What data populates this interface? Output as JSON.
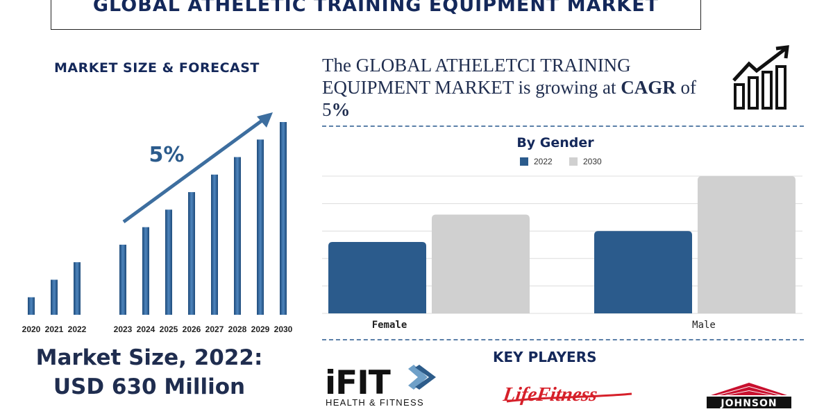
{
  "title": "GLOBAL ATHELETIC TRAINING EQUIPMENT MARKET",
  "forecast": {
    "heading": "MARKET SIZE & FORECAST",
    "cagr_label": "5%"
  },
  "market_size": {
    "line1": "Market Size, 2022:",
    "line2": "USD 630 Million"
  },
  "cagr_statement": {
    "text_before": "The GLOBAL ATHELETCI TRAINING EQUIPMENT MARKET is growing at ",
    "cagr_word": "CAGR",
    "text_middle": " of ",
    "value_number": "5",
    "value_percent": "%"
  },
  "key_players": {
    "heading": "KEY PLAYERS",
    "logos": [
      {
        "name": "iFIT",
        "tagline": "HEALTH & FITNESS"
      },
      {
        "name": "LifeFitness"
      },
      {
        "name": "JOHNSON"
      }
    ]
  },
  "icons": {
    "growth": "bar-chart-growth-icon"
  },
  "colors": {
    "navy": "#14285a",
    "bar_2022": "#2b5b8c",
    "bar_2030": "#d0d0d0",
    "forecast_bar": "#2f5f92",
    "lifefitness_red": "#d6202a"
  },
  "chart_data": [
    {
      "type": "bar",
      "title": "MARKET SIZE & FORECAST",
      "categories": [
        "2020",
        "2021",
        "2022",
        "2023",
        "2024",
        "2025",
        "2026",
        "2027",
        "2028",
        "2029",
        "2030"
      ],
      "values": [
        1,
        2,
        3,
        4,
        5,
        6,
        7,
        8,
        9,
        10,
        11
      ],
      "annotation": "5%",
      "ylim": [
        0,
        11
      ],
      "grid": false,
      "legend": "none"
    },
    {
      "type": "bar",
      "title": "By Gender",
      "categories": [
        "Female",
        "Male"
      ],
      "series": [
        {
          "name": "2022",
          "values": [
            260,
            300
          ]
        },
        {
          "name": "2030",
          "values": [
            360,
            500
          ]
        }
      ],
      "ylim": [
        0,
        500
      ],
      "grid": true,
      "legend": "top-center"
    }
  ]
}
